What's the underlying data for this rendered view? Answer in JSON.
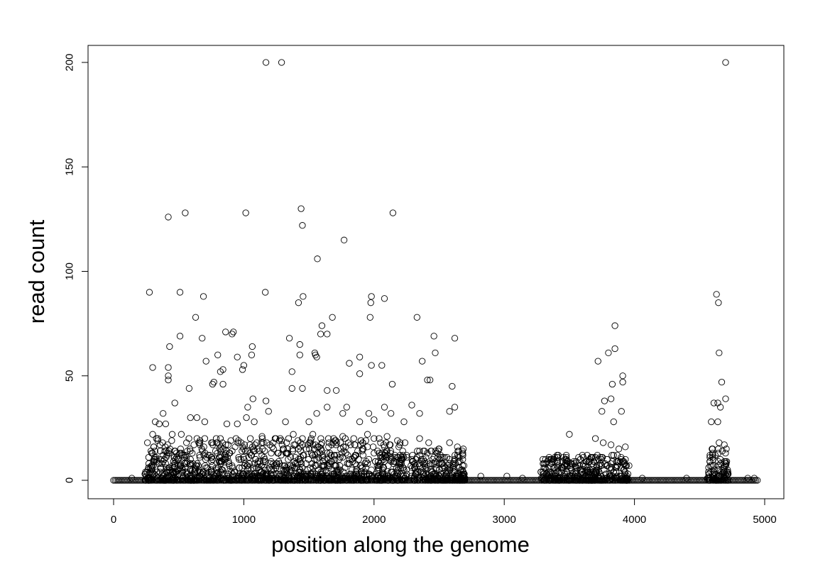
{
  "chart_data": {
    "type": "scatter",
    "title": "",
    "xlabel": "position along the genome",
    "ylabel": "read count",
    "xlim": [
      0,
      5000
    ],
    "ylim": [
      0,
      200
    ],
    "xticks": [
      0,
      1000,
      2000,
      3000,
      4000,
      5000
    ],
    "yticks": [
      0,
      50,
      100,
      150,
      200
    ],
    "grid": false,
    "legend": "none",
    "marker": "open-circle",
    "marker_color": "#000000",
    "baseline": {
      "description": "dense run of points at read count 0",
      "x_range": [
        0,
        4950
      ],
      "y": 0
    },
    "clusters": [
      {
        "x_range": [
          240,
          2260
        ],
        "typical_max": 20
      },
      {
        "x_range": [
          2280,
          2700
        ],
        "typical_max": 15
      },
      {
        "x_range": [
          3280,
          3960
        ],
        "typical_max": 12
      },
      {
        "x_range": [
          4560,
          4720
        ],
        "typical_max": 15
      }
    ],
    "points": [
      [
        1170,
        200
      ],
      [
        1290,
        200
      ],
      [
        4700,
        200
      ],
      [
        1440,
        130
      ],
      [
        420,
        126
      ],
      [
        550,
        128
      ],
      [
        1015,
        128
      ],
      [
        2145,
        128
      ],
      [
        1450,
        122
      ],
      [
        1770,
        115
      ],
      [
        1565,
        106
      ],
      [
        275,
        90
      ],
      [
        510,
        90
      ],
      [
        1165,
        90
      ],
      [
        690,
        88
      ],
      [
        1980,
        88
      ],
      [
        1455,
        88
      ],
      [
        2080,
        87
      ],
      [
        1420,
        85
      ],
      [
        1975,
        85
      ],
      [
        4630,
        89
      ],
      [
        4645,
        85
      ],
      [
        630,
        78
      ],
      [
        1680,
        78
      ],
      [
        2330,
        78
      ],
      [
        1970,
        78
      ],
      [
        1600,
        74
      ],
      [
        3850,
        74
      ],
      [
        1640,
        70
      ],
      [
        1590,
        70
      ],
      [
        860,
        71
      ],
      [
        920,
        71
      ],
      [
        910,
        70
      ],
      [
        510,
        69
      ],
      [
        2460,
        69
      ],
      [
        680,
        68
      ],
      [
        1350,
        68
      ],
      [
        2620,
        68
      ],
      [
        430,
        64
      ],
      [
        1065,
        64
      ],
      [
        1430,
        65
      ],
      [
        1550,
        60
      ],
      [
        1545,
        61
      ],
      [
        1560,
        59
      ],
      [
        800,
        60
      ],
      [
        950,
        59
      ],
      [
        1060,
        60
      ],
      [
        1890,
        59
      ],
      [
        1430,
        60
      ],
      [
        2470,
        61
      ],
      [
        3850,
        63
      ],
      [
        4650,
        61
      ],
      [
        3800,
        61
      ],
      [
        300,
        54
      ],
      [
        420,
        54
      ],
      [
        1810,
        56
      ],
      [
        3720,
        57
      ],
      [
        2370,
        57
      ],
      [
        710,
        57
      ],
      [
        820,
        52
      ],
      [
        840,
        53
      ],
      [
        1000,
        55
      ],
      [
        990,
        53
      ],
      [
        1370,
        52
      ],
      [
        1890,
        51
      ],
      [
        1980,
        55
      ],
      [
        2060,
        55
      ],
      [
        420,
        50
      ],
      [
        420,
        48
      ],
      [
        2410,
        48
      ],
      [
        2430,
        48
      ],
      [
        3910,
        50
      ],
      [
        3830,
        46
      ],
      [
        3910,
        47
      ],
      [
        4670,
        47
      ],
      [
        770,
        47
      ],
      [
        760,
        46
      ],
      [
        840,
        46
      ],
      [
        2140,
        46
      ],
      [
        1370,
        44
      ],
      [
        1450,
        44
      ],
      [
        1710,
        43
      ],
      [
        1640,
        43
      ],
      [
        580,
        44
      ],
      [
        2600,
        45
      ],
      [
        4610,
        37
      ],
      [
        4640,
        37
      ],
      [
        3770,
        38
      ],
      [
        3820,
        39
      ],
      [
        470,
        37
      ],
      [
        1030,
        35
      ],
      [
        1070,
        39
      ],
      [
        1170,
        38
      ],
      [
        1640,
        35
      ],
      [
        1790,
        35
      ],
      [
        2080,
        35
      ],
      [
        2290,
        36
      ],
      [
        4700,
        39
      ],
      [
        4660,
        35
      ],
      [
        2620,
        35
      ],
      [
        380,
        32
      ],
      [
        590,
        30
      ],
      [
        640,
        30
      ],
      [
        1020,
        30
      ],
      [
        1190,
        33
      ],
      [
        1560,
        32
      ],
      [
        1760,
        32
      ],
      [
        2130,
        32
      ],
      [
        2350,
        32
      ],
      [
        2580,
        33
      ],
      [
        3750,
        33
      ],
      [
        3900,
        33
      ],
      [
        1960,
        32
      ],
      [
        320,
        28
      ],
      [
        350,
        27
      ],
      [
        400,
        27
      ],
      [
        700,
        28
      ],
      [
        870,
        27
      ],
      [
        950,
        27
      ],
      [
        1080,
        28
      ],
      [
        1320,
        28
      ],
      [
        1500,
        28
      ],
      [
        1890,
        28
      ],
      [
        2000,
        29
      ],
      [
        2230,
        28
      ],
      [
        3840,
        28
      ],
      [
        4590,
        28
      ],
      [
        4640,
        28
      ],
      [
        260,
        18
      ],
      [
        300,
        22
      ],
      [
        340,
        20
      ],
      [
        450,
        22
      ],
      [
        520,
        22
      ],
      [
        560,
        18
      ],
      [
        640,
        20
      ],
      [
        700,
        20
      ],
      [
        760,
        18
      ],
      [
        820,
        20
      ],
      [
        880,
        17
      ],
      [
        940,
        20
      ],
      [
        980,
        18
      ],
      [
        1050,
        20
      ],
      [
        1100,
        18
      ],
      [
        1140,
        21
      ],
      [
        1200,
        17
      ],
      [
        1240,
        20
      ],
      [
        1290,
        19
      ],
      [
        1380,
        22
      ],
      [
        1450,
        20
      ],
      [
        1490,
        17
      ],
      [
        1530,
        22
      ],
      [
        1600,
        18
      ],
      [
        1650,
        20
      ],
      [
        1700,
        19
      ],
      [
        1760,
        21
      ],
      [
        1820,
        17
      ],
      [
        1900,
        19
      ],
      [
        1950,
        22
      ],
      [
        2000,
        20
      ],
      [
        2050,
        18
      ],
      [
        2100,
        21
      ],
      [
        2180,
        19
      ],
      [
        2350,
        20
      ],
      [
        2420,
        18
      ],
      [
        2500,
        15
      ],
      [
        2580,
        18
      ],
      [
        2640,
        16
      ],
      [
        3700,
        20
      ],
      [
        3760,
        18
      ],
      [
        3820,
        17
      ],
      [
        3880,
        15
      ],
      [
        3930,
        16
      ],
      [
        4600,
        15
      ],
      [
        4650,
        18
      ],
      [
        4690,
        17
      ],
      [
        3500,
        22
      ],
      [
        3600,
        12
      ],
      [
        270,
        8
      ],
      [
        310,
        10
      ],
      [
        360,
        6
      ],
      [
        410,
        12
      ],
      [
        460,
        9
      ],
      [
        510,
        7
      ],
      [
        560,
        11
      ],
      [
        610,
        8
      ],
      [
        660,
        12
      ],
      [
        710,
        6
      ],
      [
        760,
        10
      ],
      [
        810,
        9
      ],
      [
        860,
        13
      ],
      [
        910,
        7
      ],
      [
        960,
        11
      ],
      [
        1010,
        8
      ],
      [
        1060,
        12
      ],
      [
        1110,
        6
      ],
      [
        1160,
        10
      ],
      [
        1210,
        9
      ],
      [
        1260,
        13
      ],
      [
        1310,
        7
      ],
      [
        1360,
        11
      ],
      [
        1410,
        8
      ],
      [
        1460,
        12
      ],
      [
        1510,
        6
      ],
      [
        1560,
        10
      ],
      [
        1610,
        9
      ],
      [
        1660,
        13
      ],
      [
        1710,
        7
      ],
      [
        1760,
        11
      ],
      [
        1810,
        8
      ],
      [
        1860,
        12
      ],
      [
        1910,
        6
      ],
      [
        1960,
        10
      ],
      [
        2010,
        9
      ],
      [
        2060,
        13
      ],
      [
        2110,
        7
      ],
      [
        2160,
        11
      ],
      [
        2210,
        8
      ],
      [
        2300,
        9
      ],
      [
        2350,
        12
      ],
      [
        2400,
        6
      ],
      [
        2450,
        10
      ],
      [
        2520,
        8
      ],
      [
        2560,
        11
      ],
      [
        2610,
        7
      ],
      [
        2660,
        9
      ],
      [
        3320,
        8
      ],
      [
        3380,
        10
      ],
      [
        3440,
        6
      ],
      [
        3520,
        5
      ],
      [
        3580,
        7
      ],
      [
        3650,
        9
      ],
      [
        3700,
        11
      ],
      [
        3740,
        8
      ],
      [
        3790,
        10
      ],
      [
        3840,
        12
      ],
      [
        3890,
        9
      ],
      [
        3940,
        7
      ],
      [
        4580,
        9
      ],
      [
        4620,
        12
      ],
      [
        4660,
        10
      ],
      [
        4700,
        8
      ],
      [
        290,
        3
      ],
      [
        330,
        4
      ],
      [
        380,
        2
      ],
      [
        430,
        5
      ],
      [
        480,
        3
      ],
      [
        530,
        4
      ],
      [
        580,
        2
      ],
      [
        630,
        5
      ],
      [
        680,
        3
      ],
      [
        730,
        4
      ],
      [
        780,
        2
      ],
      [
        830,
        5
      ],
      [
        880,
        3
      ],
      [
        930,
        4
      ],
      [
        980,
        2
      ],
      [
        1030,
        5
      ],
      [
        1080,
        3
      ],
      [
        1130,
        4
      ],
      [
        1180,
        2
      ],
      [
        1230,
        5
      ],
      [
        1280,
        3
      ],
      [
        1330,
        4
      ],
      [
        1380,
        2
      ],
      [
        1430,
        5
      ],
      [
        1480,
        3
      ],
      [
        1530,
        4
      ],
      [
        1580,
        2
      ],
      [
        1630,
        5
      ],
      [
        1680,
        3
      ],
      [
        1730,
        4
      ],
      [
        1780,
        2
      ],
      [
        1830,
        5
      ],
      [
        1880,
        3
      ],
      [
        1930,
        4
      ],
      [
        1980,
        2
      ],
      [
        2030,
        5
      ],
      [
        2080,
        3
      ],
      [
        2130,
        4
      ],
      [
        2180,
        2
      ],
      [
        2230,
        5
      ],
      [
        2320,
        3
      ],
      [
        2380,
        4
      ],
      [
        2440,
        2
      ],
      [
        2500,
        5
      ],
      [
        2560,
        3
      ],
      [
        2620,
        4
      ],
      [
        2680,
        2
      ],
      [
        3300,
        3
      ],
      [
        3360,
        2
      ],
      [
        3420,
        4
      ],
      [
        3480,
        3
      ],
      [
        3540,
        2
      ],
      [
        3600,
        4
      ],
      [
        3660,
        3
      ],
      [
        3720,
        5
      ],
      [
        3780,
        3
      ],
      [
        3840,
        4
      ],
      [
        3900,
        2
      ],
      [
        3950,
        3
      ],
      [
        4570,
        3
      ],
      [
        4610,
        4
      ],
      [
        4650,
        2
      ],
      [
        4690,
        5
      ],
      [
        4720,
        3
      ],
      [
        2820,
        2
      ],
      [
        3020,
        2
      ],
      [
        3140,
        1
      ],
      [
        4060,
        1
      ],
      [
        4400,
        1
      ],
      [
        4870,
        1
      ],
      [
        4920,
        1
      ],
      [
        140,
        1
      ]
    ]
  }
}
